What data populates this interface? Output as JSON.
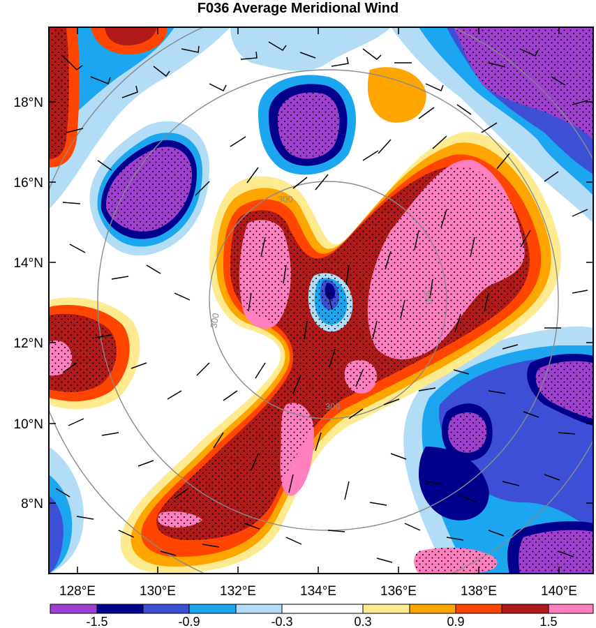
{
  "title": "F036 Average Meridional Wind",
  "map": {
    "lat_labels": [
      "18°N",
      "16°N",
      "14°N",
      "12°N",
      "10°N",
      "8°N"
    ],
    "lon_labels": [
      "128°E",
      "130°E",
      "132°E",
      "134°E",
      "136°E",
      "138°E",
      "140°E"
    ],
    "ring_labels": [
      "300",
      "300",
      "300",
      "300"
    ],
    "colors": {
      "c1": "#9f3fd0",
      "c2": "#00008c",
      "c3": "#3d4fd4",
      "c4": "#1ba6ef",
      "c5": "#b3dcf7",
      "c6": "#ffffff",
      "c7": "#ffeb8f",
      "c8": "#ffa500",
      "c9": "#ff4500",
      "c10": "#b21a1a",
      "c11": "#ff7fbf"
    }
  },
  "colorbar": {
    "labels": [
      "-1.5",
      "-0.9",
      "-0.3",
      "0.3",
      "0.9",
      "1.5"
    ],
    "colors": [
      "#9f3fd0",
      "#00008c",
      "#3d4fd4",
      "#1ba6ef",
      "#b3dcf7",
      "#ffffff",
      "#ffeb8f",
      "#ffa500",
      "#ff4500",
      "#b21a1a",
      "#ff7fbf"
    ]
  }
}
